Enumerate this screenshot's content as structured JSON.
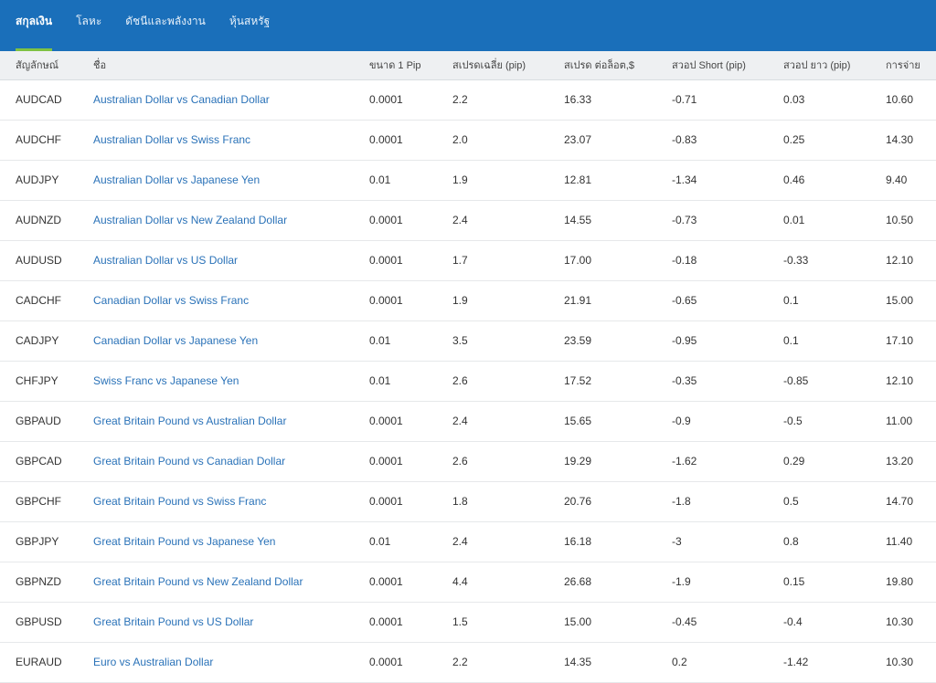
{
  "tabs": [
    "สกุลเงิน",
    "โลหะ",
    "ดัชนีและพลังงาน",
    "หุ้นสหรัฐ"
  ],
  "active_tab": 0,
  "colors": {
    "header": "#1a6fba",
    "tab_indicator": "#7fc243",
    "link": "#2a72b8"
  },
  "table": {
    "headers": [
      "สัญลักษณ์",
      "ชื่อ",
      "ขนาด 1 Pip",
      "สเปรดเฉลี่ย (pip)",
      "สเปรด ต่อล็อต,$",
      "สวอป Short (pip)",
      "สวอป ยาว (pip)",
      "การจ่าย"
    ],
    "rows": [
      [
        "AUDCAD",
        "Australian Dollar vs Canadian Dollar",
        "0.0001",
        "2.2",
        "16.33",
        "-0.71",
        "0.03",
        "10.60"
      ],
      [
        "AUDCHF",
        "Australian Dollar vs Swiss Franc",
        "0.0001",
        "2.0",
        "23.07",
        "-0.83",
        "0.25",
        "14.30"
      ],
      [
        "AUDJPY",
        "Australian Dollar vs Japanese Yen",
        "0.01",
        "1.9",
        "12.81",
        "-1.34",
        "0.46",
        "9.40"
      ],
      [
        "AUDNZD",
        "Australian Dollar vs New Zealand Dollar",
        "0.0001",
        "2.4",
        "14.55",
        "-0.73",
        "0.01",
        "10.50"
      ],
      [
        "AUDUSD",
        "Australian Dollar vs US Dollar",
        "0.0001",
        "1.7",
        "17.00",
        "-0.18",
        "-0.33",
        "12.10"
      ],
      [
        "CADCHF",
        "Canadian Dollar vs Swiss Franc",
        "0.0001",
        "1.9",
        "21.91",
        "-0.65",
        "0.1",
        "15.00"
      ],
      [
        "CADJPY",
        "Canadian Dollar vs Japanese Yen",
        "0.01",
        "3.5",
        "23.59",
        "-0.95",
        "0.1",
        "17.10"
      ],
      [
        "CHFJPY",
        "Swiss Franc vs Japanese Yen",
        "0.01",
        "2.6",
        "17.52",
        "-0.35",
        "-0.85",
        "12.10"
      ],
      [
        "GBPAUD",
        "Great Britain Pound vs Australian Dollar",
        "0.0001",
        "2.4",
        "15.65",
        "-0.9",
        "-0.5",
        "11.00"
      ],
      [
        "GBPCAD",
        "Great Britain Pound vs Canadian Dollar",
        "0.0001",
        "2.6",
        "19.29",
        "-1.62",
        "0.29",
        "13.20"
      ],
      [
        "GBPCHF",
        "Great Britain Pound vs Swiss Franc",
        "0.0001",
        "1.8",
        "20.76",
        "-1.8",
        "0.5",
        "14.70"
      ],
      [
        "GBPJPY",
        "Great Britain Pound vs Japanese Yen",
        "0.01",
        "2.4",
        "16.18",
        "-3",
        "0.8",
        "11.40"
      ],
      [
        "GBPNZD",
        "Great Britain Pound vs New Zealand Dollar",
        "0.0001",
        "4.4",
        "26.68",
        "-1.9",
        "0.15",
        "19.80"
      ],
      [
        "GBPUSD",
        "Great Britain Pound vs US Dollar",
        "0.0001",
        "1.5",
        "15.00",
        "-0.45",
        "-0.4",
        "10.30"
      ],
      [
        "EURAUD",
        "Euro vs Australian Dollar",
        "0.0001",
        "2.2",
        "14.35",
        "0.2",
        "-1.42",
        "10.30"
      ]
    ]
  }
}
